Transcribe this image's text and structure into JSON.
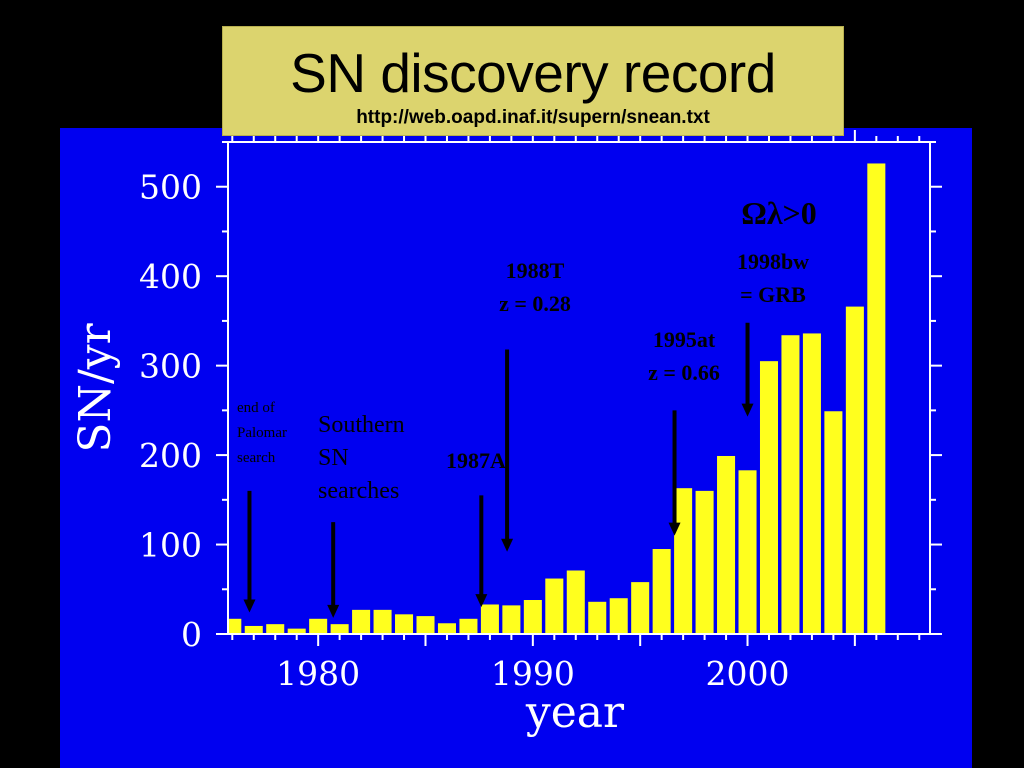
{
  "title": "SN discovery record",
  "subtitle": "http://web.oapd.inaf.it/supern/snean.txt",
  "chart_data": {
    "type": "bar",
    "xlabel": "year",
    "ylabel": "SN/yr",
    "xlim": [
      1975.8,
      2008.5
    ],
    "ylim": [
      0,
      550
    ],
    "xticks": [
      1980,
      1990,
      2000
    ],
    "yticks": [
      0,
      100,
      200,
      300,
      400,
      500
    ],
    "grid": false,
    "colors": {
      "bar": "#ffff1e",
      "panel": "#0000f0",
      "frame": "#ffffff",
      "annotation": "#000000"
    },
    "x": [
      1976,
      1977,
      1978,
      1979,
      1980,
      1981,
      1982,
      1983,
      1984,
      1985,
      1986,
      1987,
      1988,
      1989,
      1990,
      1991,
      1992,
      1993,
      1994,
      1995,
      1996,
      1997,
      1998,
      1999,
      2000,
      2001,
      2002,
      2003,
      2004,
      2005,
      2006
    ],
    "values": [
      17,
      9,
      11,
      6,
      17,
      11,
      27,
      27,
      22,
      20,
      12,
      17,
      33,
      32,
      38,
      62,
      71,
      36,
      40,
      58,
      95,
      163,
      160,
      199,
      183,
      305,
      334,
      336,
      249,
      366,
      526
    ],
    "annotations": [
      {
        "lines": [
          "end of",
          "Palomar",
          "search"
        ],
        "style": "small",
        "arrow_x": 1976.8,
        "arrow_top": 160,
        "arrow_bottom": 24
      },
      {
        "lines": [
          "Southern",
          "SN",
          "searches"
        ],
        "style": "regular",
        "arrow_x": 1980.7,
        "arrow_top": 125,
        "arrow_bottom": 18
      },
      {
        "lines": [
          "1987A"
        ],
        "style": "bold",
        "arrow_x": 1987.6,
        "arrow_top": 155,
        "arrow_bottom": 30
      },
      {
        "lines": [
          "1988T",
          "z = 0.28"
        ],
        "style": "bold",
        "arrow_x": 1988.8,
        "arrow_top": 318,
        "arrow_bottom": 92
      },
      {
        "lines": [
          "1995at",
          "z = 0.66"
        ],
        "style": "bold",
        "arrow_x": 1996.6,
        "arrow_top": 250,
        "arrow_bottom": 110
      },
      {
        "lines": [
          "Ωλ>0"
        ],
        "style": "omega"
      },
      {
        "lines": [
          "1998bw",
          "= GRB"
        ],
        "style": "bold",
        "arrow_x": 2000.0,
        "arrow_top": 348,
        "arrow_bottom": 243
      }
    ]
  }
}
